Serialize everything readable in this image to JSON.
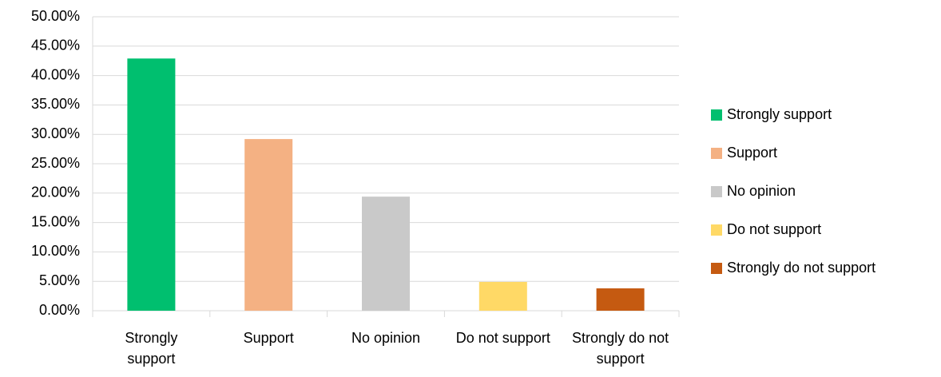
{
  "chart_data": {
    "type": "bar",
    "categories": [
      "Strongly support",
      "Support",
      "No opinion",
      "Do not support",
      "Strongly do not support"
    ],
    "values": [
      42.9,
      29.2,
      19.4,
      4.9,
      3.8
    ],
    "colors": [
      "#00bf6f",
      "#f4b183",
      "#c9c9c9",
      "#ffd966",
      "#c55a11"
    ],
    "ylim": [
      0,
      50
    ],
    "yticks": [
      {
        "value": 0,
        "label": "0.00%"
      },
      {
        "value": 5,
        "label": "5.00%"
      },
      {
        "value": 10,
        "label": "10.00%"
      },
      {
        "value": 15,
        "label": "15.00%"
      },
      {
        "value": 20,
        "label": "20.00%"
      },
      {
        "value": 25,
        "label": "25.00%"
      },
      {
        "value": 30,
        "label": "30.00%"
      },
      {
        "value": 35,
        "label": "35.00%"
      },
      {
        "value": 40,
        "label": "40.00%"
      },
      {
        "value": 45,
        "label": "45.00%"
      },
      {
        "value": 50,
        "label": "50.00%"
      }
    ],
    "grid": true,
    "legend": "right"
  }
}
